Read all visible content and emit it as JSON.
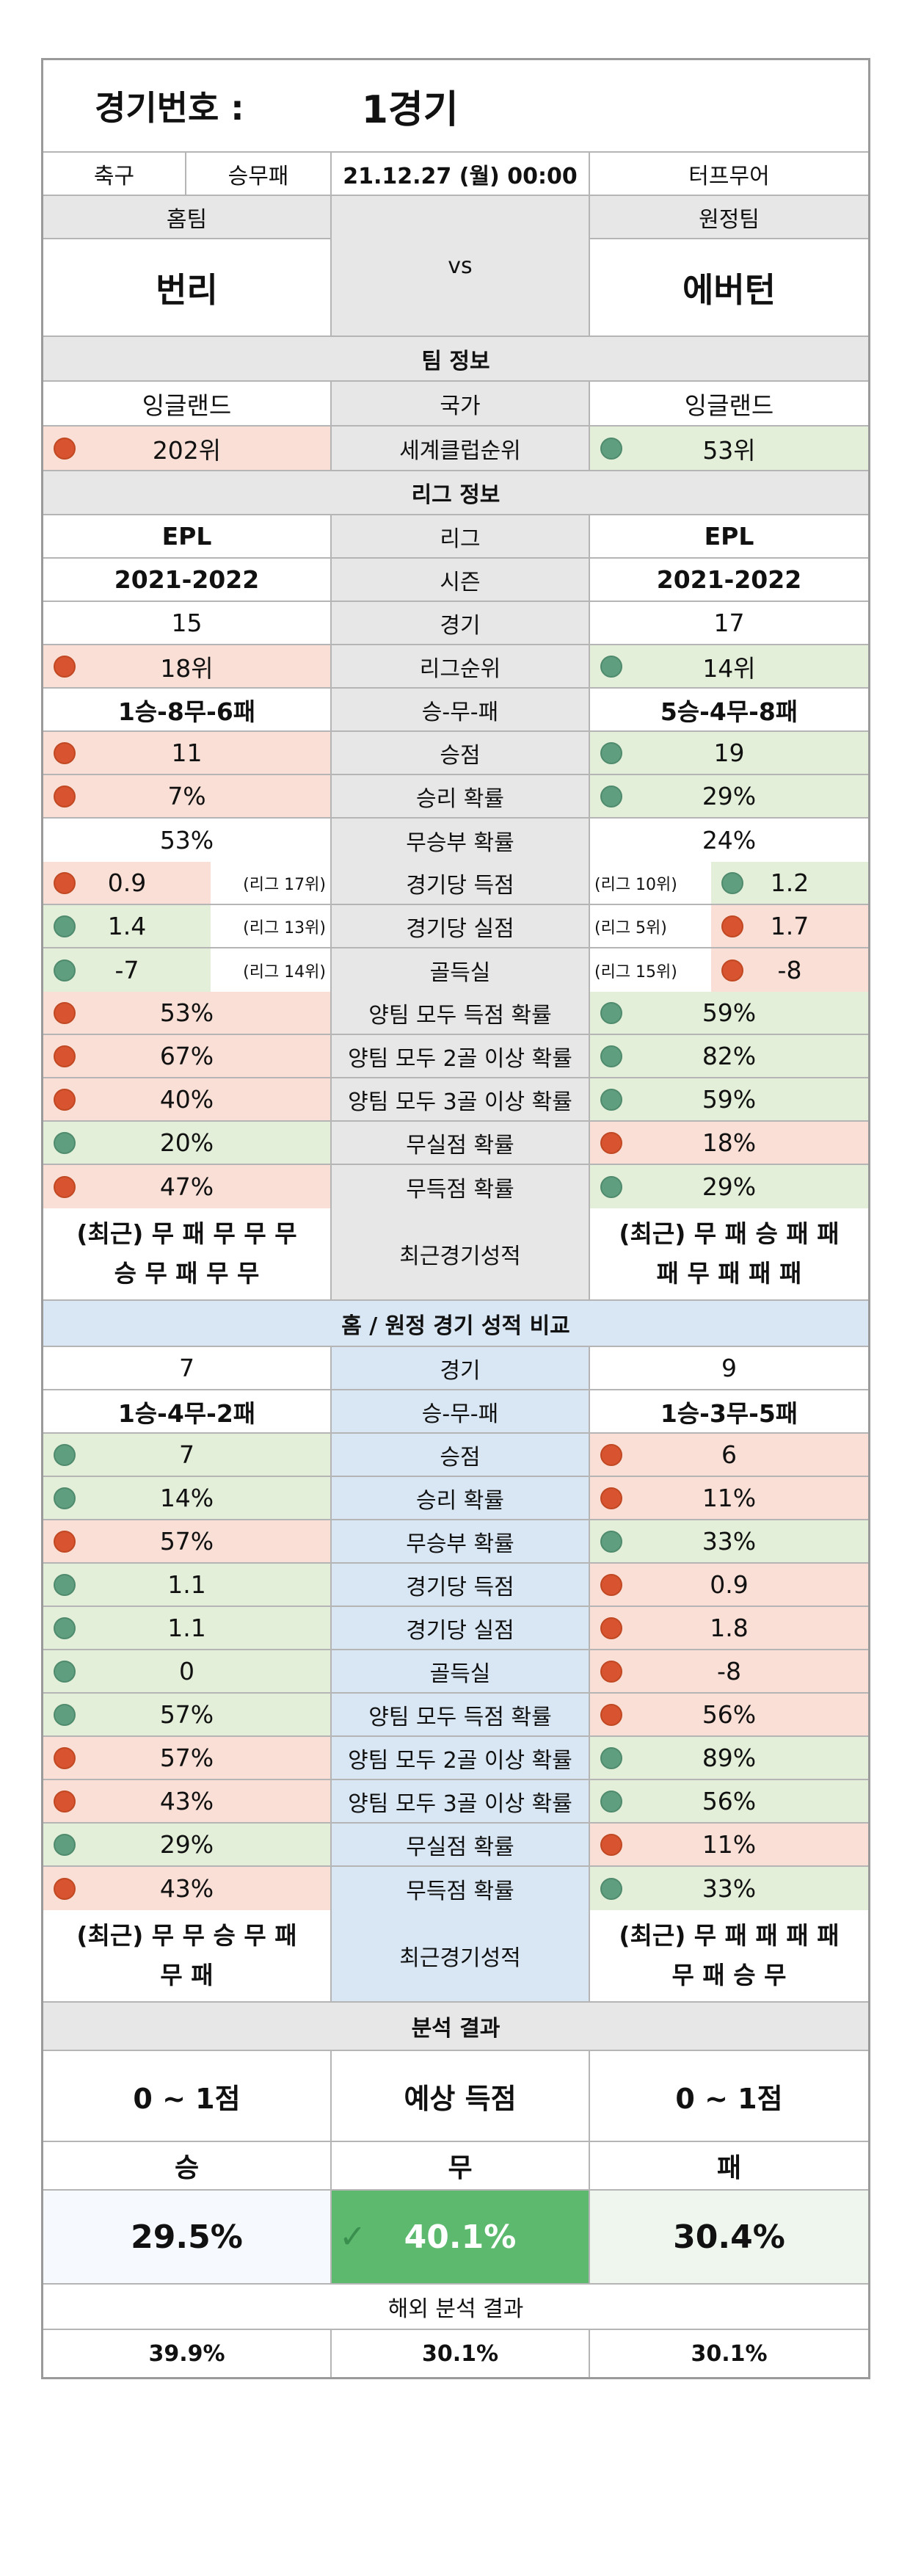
{
  "title": {
    "label": "경기번호 :",
    "value": "1경기"
  },
  "info": {
    "sport": "축구",
    "type": "승무패",
    "datetime": "21.12.27 (월) 00:00",
    "venue": "터프무어"
  },
  "teams": {
    "home_label": "홈팀",
    "away_label": "원정팀",
    "home": "번리",
    "vs": "vs",
    "away": "에버턴"
  },
  "team_info": {
    "header": "팀 정보",
    "country": {
      "home": "잉글랜드",
      "label": "국가",
      "away": "잉글랜드"
    },
    "club_rank": {
      "home": "202위",
      "label": "세계클럽순위",
      "away": "53위"
    }
  },
  "league_info": {
    "header": "리그 정보",
    "rows": [
      {
        "home": "EPL",
        "label": "리그",
        "away": "EPL",
        "bold": true
      },
      {
        "home": "2021-2022",
        "label": "시즌",
        "away": "2021-2022",
        "bold": true
      },
      {
        "home": "15",
        "label": "경기",
        "away": "17"
      },
      {
        "home": "18위",
        "label": "리그순위",
        "away": "14위",
        "hc": "r",
        "ac": "g"
      },
      {
        "home": "1승-8무-6패",
        "label": "승-무-패",
        "away": "5승-4무-8패",
        "bold": true
      },
      {
        "home": "11",
        "label": "승점",
        "away": "19",
        "hc": "r",
        "ac": "g"
      },
      {
        "home": "7%",
        "label": "승리 확률",
        "away": "29%",
        "hc": "r",
        "ac": "g"
      },
      {
        "home": "53%",
        "label": "무승부 확률",
        "away": "24%"
      }
    ],
    "ranked_rows": [
      {
        "home": "0.9",
        "home_rank": "(리그 17위)",
        "label": "경기당 득점",
        "away": "1.2",
        "away_rank": "(리그 10위)",
        "hc": "r",
        "ac": "g"
      },
      {
        "home": "1.4",
        "home_rank": "(리그 13위)",
        "label": "경기당 실점",
        "away": "1.7",
        "away_rank": "(리그 5위)",
        "hc": "g",
        "ac": "r"
      },
      {
        "home": "-7",
        "home_rank": "(리그 14위)",
        "label": "골득실",
        "away": "-8",
        "away_rank": "(리그 15위)",
        "hc": "g",
        "ac": "r"
      }
    ],
    "prob_rows": [
      {
        "home": "53%",
        "label": "양팀 모두 득점 확률",
        "away": "59%",
        "hc": "r",
        "ac": "g"
      },
      {
        "home": "67%",
        "label": "양팀 모두 2골 이상 확률",
        "away": "82%",
        "hc": "r",
        "ac": "g"
      },
      {
        "home": "40%",
        "label": "양팀 모두 3골 이상 확률",
        "away": "59%",
        "hc": "r",
        "ac": "g"
      },
      {
        "home": "20%",
        "label": "무실점 확률",
        "away": "18%",
        "hc": "g",
        "ac": "r"
      },
      {
        "home": "47%",
        "label": "무득점 확률",
        "away": "29%",
        "hc": "r",
        "ac": "g"
      }
    ],
    "recent": {
      "home_line1": "(최근) 무 패 무 무 무",
      "home_line2": "승 무 패 무 무",
      "label": "최근경기성적",
      "away_line1": "(최근) 무 패 승 패 패",
      "away_line2": "패 무 패 패 패"
    }
  },
  "home_away": {
    "header": "홈 / 원정 경기 성적 비교",
    "rows": [
      {
        "home": "7",
        "label": "경기",
        "away": "9"
      },
      {
        "home": "1승-4무-2패",
        "label": "승-무-패",
        "away": "1승-3무-5패",
        "bold": true
      },
      {
        "home": "7",
        "label": "승점",
        "away": "6",
        "hc": "g",
        "ac": "r"
      },
      {
        "home": "14%",
        "label": "승리 확률",
        "away": "11%",
        "hc": "g",
        "ac": "r"
      },
      {
        "home": "57%",
        "label": "무승부 확률",
        "away": "33%",
        "hc": "r",
        "ac": "g"
      },
      {
        "home": "1.1",
        "label": "경기당 득점",
        "away": "0.9",
        "hc": "g",
        "ac": "r"
      },
      {
        "home": "1.1",
        "label": "경기당 실점",
        "away": "1.8",
        "hc": "g",
        "ac": "r"
      },
      {
        "home": "0",
        "label": "골득실",
        "away": "-8",
        "hc": "g",
        "ac": "r"
      },
      {
        "home": "57%",
        "label": "양팀 모두 득점 확률",
        "away": "56%",
        "hc": "g",
        "ac": "r"
      },
      {
        "home": "57%",
        "label": "양팀 모두 2골 이상 확률",
        "away": "89%",
        "hc": "r",
        "ac": "g"
      },
      {
        "home": "43%",
        "label": "양팀 모두 3골 이상 확률",
        "away": "56%",
        "hc": "r",
        "ac": "g"
      },
      {
        "home": "29%",
        "label": "무실점 확률",
        "away": "11%",
        "hc": "g",
        "ac": "r"
      },
      {
        "home": "43%",
        "label": "무득점 확률",
        "away": "33%",
        "hc": "r",
        "ac": "g"
      }
    ],
    "recent": {
      "home_line1": "(최근) 무 무 승 무 패",
      "home_line2": "무 패",
      "label": "최근경기성적",
      "away_line1": "(최근) 무 패 패 패 패",
      "away_line2": "무 패 승 무"
    }
  },
  "analysis": {
    "header": "분석 결과",
    "expected": {
      "home": "0 ~ 1점",
      "label": "예상 득점",
      "away": "0 ~ 1점"
    },
    "outcomes": {
      "win": "승",
      "draw": "무",
      "loss": "패"
    },
    "probs": {
      "win": "29.5%",
      "draw": "40.1%",
      "loss": "30.4%"
    },
    "foreign_header": "해외 분석 결과",
    "foreign": {
      "win": "39.9%",
      "draw": "30.1%",
      "loss": "30.1%"
    }
  },
  "colors": {
    "red_dot": "#d8532f",
    "green_dot": "#5f9f80",
    "highlight": "#5cb96e"
  }
}
